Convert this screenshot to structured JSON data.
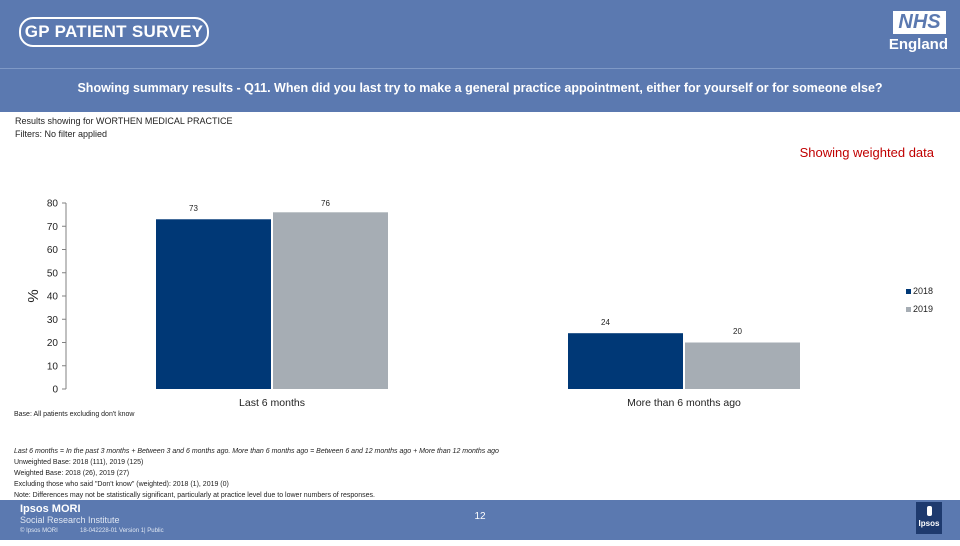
{
  "header": {
    "logo_text": "GP PATIENT SURVEY",
    "nhs_text": "NHS",
    "england_text": "England",
    "question": "Showing summary results - Q11.  When did you last try to make a general practice appointment, either for yourself or for someone else?"
  },
  "info": {
    "results_for": "Results showing for WORTHEN MEDICAL PRACTICE",
    "filters": "Filters: No filter applied",
    "weighted": "Showing weighted data"
  },
  "chart_data": {
    "type": "bar",
    "categories": [
      "Last 6 months",
      "More than 6 months ago"
    ],
    "series": [
      {
        "name": "2018",
        "values": [
          73,
          24
        ],
        "color": "#003876"
      },
      {
        "name": "2019",
        "values": [
          76,
          20
        ],
        "color": "#a6adb4"
      }
    ],
    "ylabel": "%",
    "ylim": [
      0,
      80
    ],
    "yticks": [
      0,
      10,
      20,
      30,
      40,
      50,
      60,
      70,
      80
    ],
    "legend": "right",
    "grid": false
  },
  "notes": {
    "base": "Base: All patients excluding don't know",
    "definition": "Last 6 months = In the past 3 months + Between 3 and 6 months ago. More than 6 months ago = Between 6 and 12 months ago + More than 12 months ago",
    "unweighted": "Unweighted Base: 2018 (111), 2019 (125)",
    "weighted_base": "Weighted Base: 2018 (26), 2019 (27)",
    "excluding": "Excluding those who said \"Don't know\" (weighted): 2018 (1), 2019 (0)",
    "note": "Note: Differences may not be statistically significant, particularly at practice level due to lower numbers of responses."
  },
  "footer": {
    "company": "Ipsos MORI",
    "institute": "Social Research Institute",
    "copyright": "© Ipsos MORI",
    "job": "18-042228-01 Version 1| Public",
    "page": "12",
    "logo_label": "Ipsos"
  }
}
